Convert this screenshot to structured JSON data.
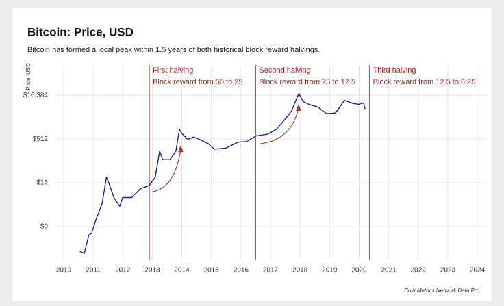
{
  "chart_data": {
    "type": "line",
    "title": "Bitcoin: Price, USD",
    "subtitle": "Bitcoin has formed a local peak within 1.5 years of both historical block reward halvings.",
    "y_label": "Price, USD",
    "source": "Coin Metrics Network Data Pro",
    "log_y": true,
    "grid": true,
    "xlim": [
      2009.7,
      2024.3
    ],
    "xticks": [
      2010,
      2011,
      2012,
      2013,
      2014,
      2015,
      2016,
      2017,
      2018,
      2019,
      2020,
      2021,
      2022,
      2023,
      2024
    ],
    "ylim": [
      0.035,
      180000
    ],
    "yticks": [
      {
        "value": 0.5,
        "label": "$0"
      },
      {
        "value": 16,
        "label": "$16"
      },
      {
        "value": 512,
        "label": "$512"
      },
      {
        "value": 16384,
        "label": "$16,384"
      }
    ],
    "x": [
      2010.55,
      2010.7,
      2010.85,
      2010.95,
      2011.1,
      2011.3,
      2011.45,
      2011.55,
      2011.7,
      2011.9,
      2012.0,
      2012.3,
      2012.6,
      2012.9,
      2013.1,
      2013.25,
      2013.35,
      2013.6,
      2013.8,
      2013.92,
      2014.0,
      2014.2,
      2014.4,
      2014.6,
      2014.9,
      2015.1,
      2015.5,
      2015.9,
      2016.2,
      2016.5,
      2016.9,
      2017.2,
      2017.5,
      2017.7,
      2017.96,
      2018.1,
      2018.3,
      2018.6,
      2018.9,
      2019.2,
      2019.5,
      2019.8,
      2020.0,
      2020.15,
      2020.2
    ],
    "series": [
      {
        "name": "Price",
        "color": "#1f1f8f",
        "values": [
          0.07,
          0.06,
          0.25,
          0.3,
          0.9,
          3,
          25,
          14,
          5,
          2.5,
          5,
          5,
          10,
          13,
          25,
          200,
          100,
          100,
          200,
          1100,
          800,
          500,
          600,
          500,
          350,
          230,
          250,
          400,
          420,
          650,
          750,
          1100,
          2500,
          4500,
          19000,
          10000,
          8000,
          6500,
          3800,
          4000,
          11000,
          8500,
          8000,
          9000,
          5500
        ]
      }
    ],
    "halvings": [
      {
        "x": 2012.9,
        "label": "First halving",
        "detail": "Block reward from 50 to 25"
      },
      {
        "x": 2016.5,
        "label": "Second halving",
        "detail": "Block reward from 25 to 12.5"
      },
      {
        "x": 2020.35,
        "label": "Third halving",
        "detail": "Block reward from 12.5 to 6.25"
      }
    ]
  }
}
